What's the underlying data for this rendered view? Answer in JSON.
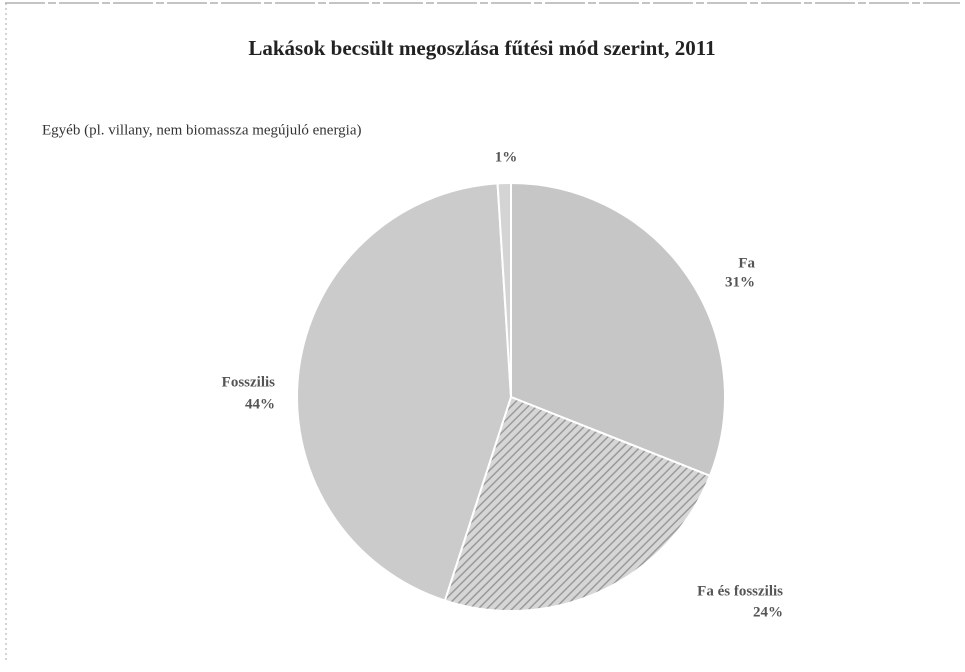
{
  "chart_data": {
    "type": "pie",
    "title": "Lakások becsült megoszlása fűtési mód szerint, 2011",
    "categories": [
      "Fa",
      "Fa és fosszilis",
      "Fosszilis",
      "Egyéb (pl. villany, nem biomassza megújuló energia)"
    ],
    "values": [
      31,
      24,
      44,
      1
    ],
    "value_labels": [
      "31%",
      "24%",
      "44%",
      "1%"
    ],
    "colors": [
      "#c6c6c6",
      "#bdbdbd",
      "#cbcbcb",
      "#d4d4d4"
    ],
    "hatched": [
      false,
      true,
      false,
      false
    ],
    "start_angle": 90,
    "direction": "clockwise"
  }
}
